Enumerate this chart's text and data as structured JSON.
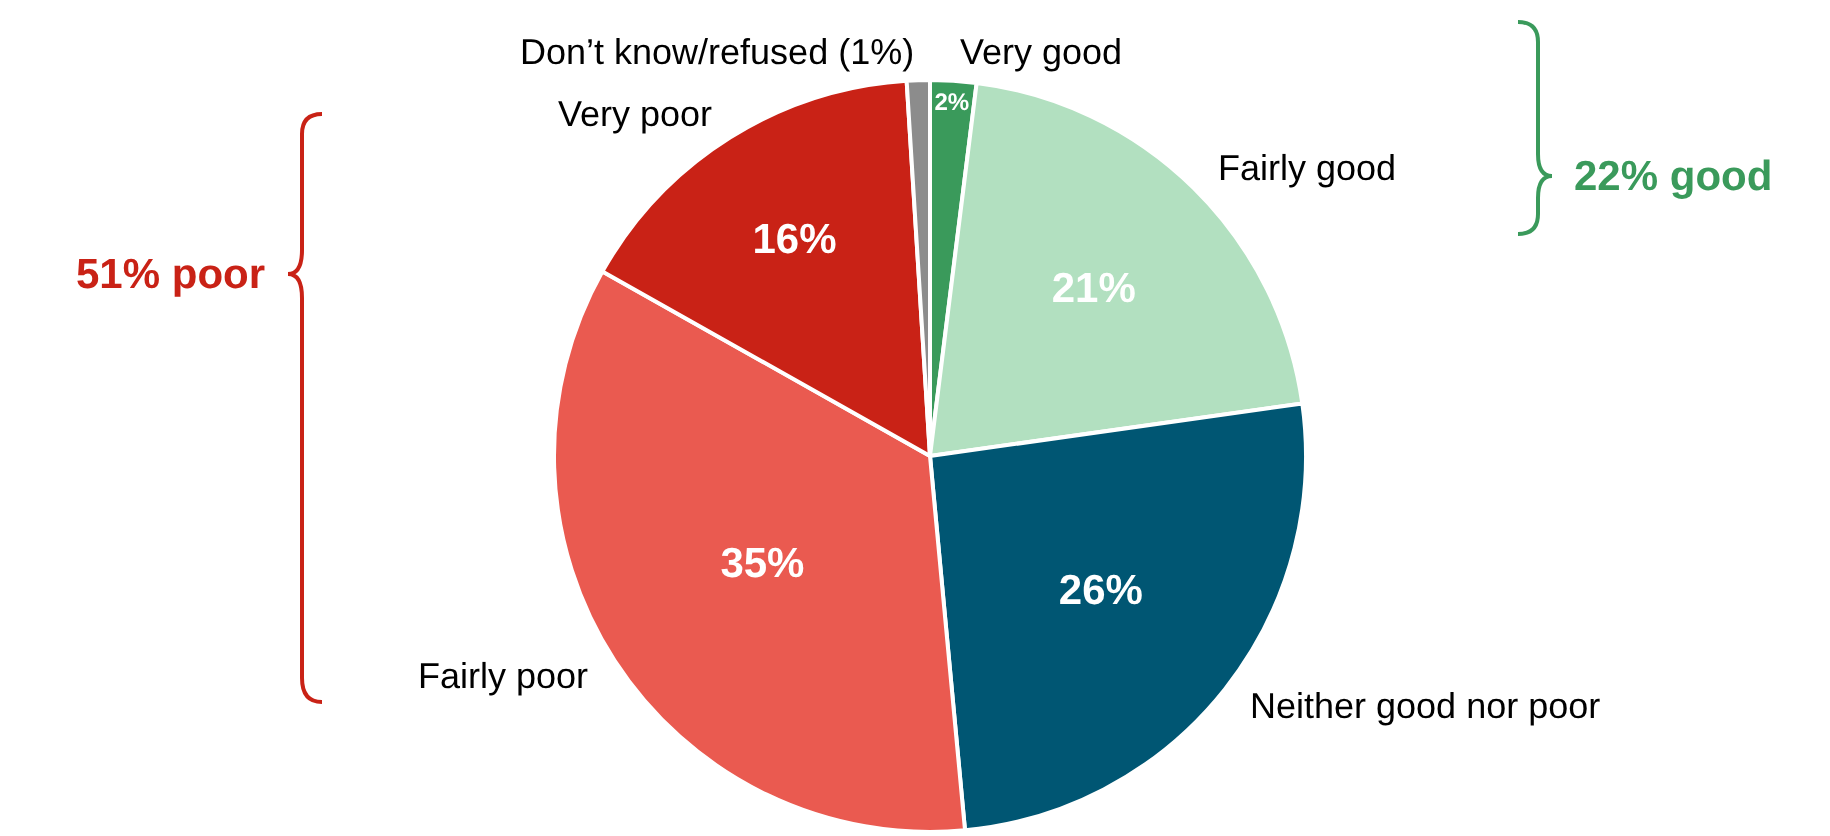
{
  "chart_data": {
    "type": "pie",
    "categories": [
      "Very good",
      "Fairly good",
      "Neither good nor poor",
      "Fairly poor",
      "Very poor",
      "Don’t know/refused (1%)"
    ],
    "values": [
      2,
      21,
      26,
      35,
      16,
      1
    ],
    "colors": [
      "#3a9a5b",
      "#b2e0c0",
      "#005673",
      "#ea5a50",
      "#c92216",
      "#8c8c8c"
    ],
    "value_labels": [
      "2%",
      "21%",
      "26%",
      "35%",
      "16%",
      null
    ],
    "annotations": [
      "51% poor",
      "22% good"
    ],
    "legend": false
  }
}
